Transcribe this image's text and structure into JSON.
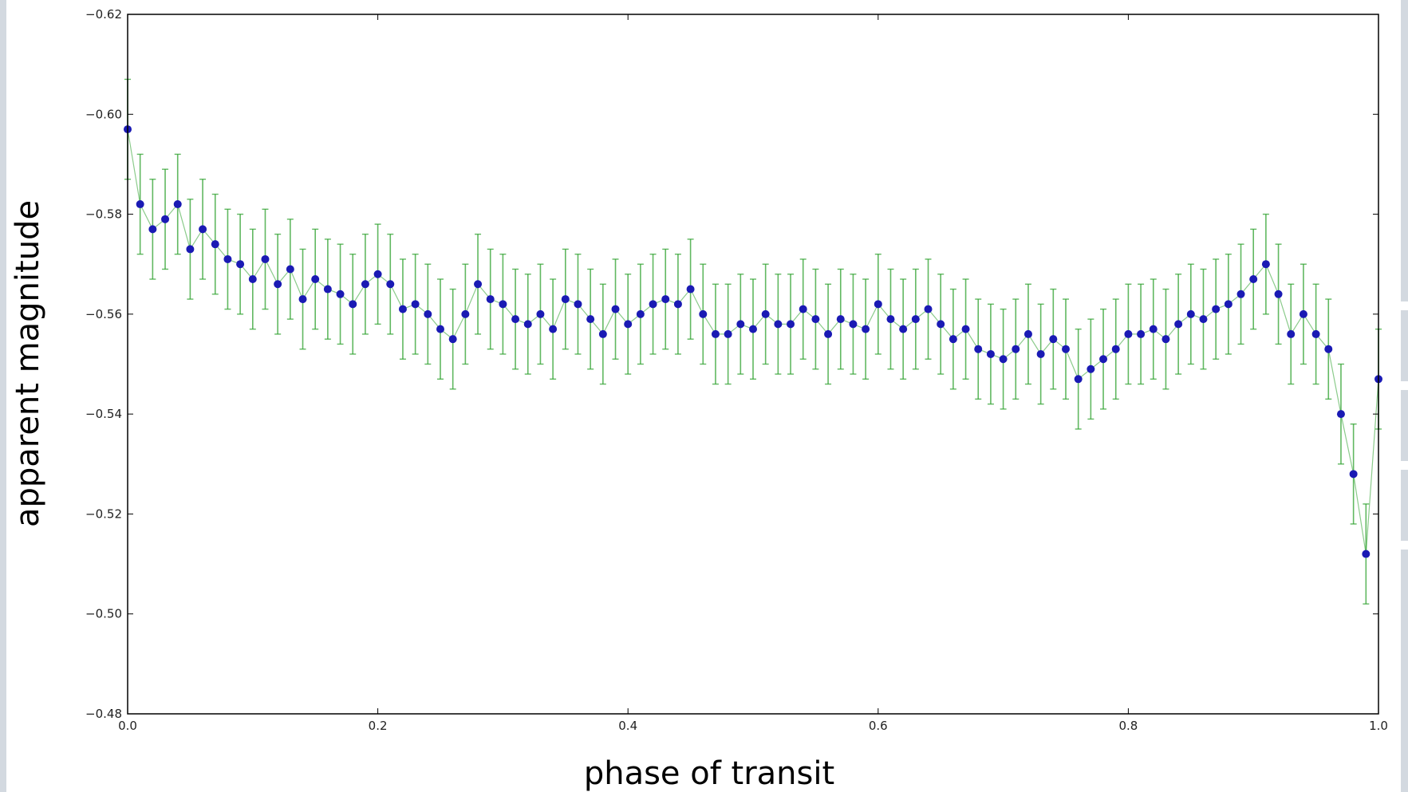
{
  "chart_data": {
    "type": "scatter",
    "title": "",
    "xlabel": "phase of transit",
    "ylabel": "apparent magnitude",
    "xlim": [
      0.0,
      1.0
    ],
    "ylim": [
      -0.62,
      -0.48
    ],
    "y_inverted": true,
    "grid": false,
    "x_ticks": [
      "0.0",
      "0.2",
      "0.4",
      "0.6",
      "0.8",
      "1.0"
    ],
    "y_ticks": [
      "−0.62",
      "−0.60",
      "−0.58",
      "−0.56",
      "−0.54",
      "−0.52",
      "−0.50",
      "−0.48"
    ],
    "marker_color": "#1a1ab4",
    "errorbar_color": "#2ca02c",
    "error": 0.01,
    "series": [
      {
        "x": [
          0.0,
          0.01,
          0.02,
          0.03,
          0.04,
          0.05,
          0.06,
          0.07,
          0.08,
          0.09,
          0.1,
          0.11,
          0.12,
          0.13,
          0.14,
          0.15,
          0.16,
          0.17,
          0.18,
          0.19,
          0.2,
          0.21,
          0.22,
          0.23,
          0.24,
          0.25,
          0.26,
          0.27,
          0.28,
          0.29,
          0.3,
          0.31,
          0.32,
          0.33,
          0.34,
          0.35,
          0.36,
          0.37,
          0.38,
          0.39,
          0.4,
          0.41,
          0.42,
          0.43,
          0.44,
          0.45,
          0.46,
          0.47,
          0.48,
          0.49,
          0.5,
          0.51,
          0.52,
          0.53,
          0.54,
          0.55,
          0.56,
          0.57,
          0.58,
          0.59,
          0.6,
          0.61,
          0.62,
          0.63,
          0.64,
          0.65,
          0.66,
          0.67,
          0.68,
          0.69,
          0.7,
          0.71,
          0.72,
          0.73,
          0.74,
          0.75,
          0.76,
          0.77,
          0.78,
          0.79,
          0.8,
          0.81,
          0.82,
          0.83,
          0.84,
          0.85,
          0.86,
          0.87,
          0.88,
          0.89,
          0.9,
          0.91,
          0.92,
          0.93,
          0.94,
          0.95,
          0.96,
          0.97,
          0.98,
          0.99,
          1.0
        ],
        "y": [
          -0.597,
          -0.582,
          -0.577,
          -0.579,
          -0.582,
          -0.573,
          -0.577,
          -0.574,
          -0.571,
          -0.57,
          -0.567,
          -0.571,
          -0.566,
          -0.569,
          -0.563,
          -0.567,
          -0.565,
          -0.564,
          -0.562,
          -0.566,
          -0.568,
          -0.566,
          -0.561,
          -0.562,
          -0.56,
          -0.557,
          -0.555,
          -0.56,
          -0.566,
          -0.563,
          -0.562,
          -0.559,
          -0.558,
          -0.56,
          -0.557,
          -0.563,
          -0.562,
          -0.559,
          -0.556,
          -0.561,
          -0.558,
          -0.56,
          -0.562,
          -0.563,
          -0.562,
          -0.565,
          -0.56,
          -0.556,
          -0.556,
          -0.558,
          -0.557,
          -0.56,
          -0.558,
          -0.558,
          -0.561,
          -0.559,
          -0.556,
          -0.559,
          -0.558,
          -0.557,
          -0.562,
          -0.559,
          -0.557,
          -0.559,
          -0.561,
          -0.558,
          -0.555,
          -0.557,
          -0.553,
          -0.552,
          -0.551,
          -0.553,
          -0.556,
          -0.552,
          -0.555,
          -0.553,
          -0.547,
          -0.549,
          -0.551,
          -0.553,
          -0.556,
          -0.556,
          -0.557,
          -0.555,
          -0.558,
          -0.56,
          -0.559,
          -0.561,
          -0.562,
          -0.564,
          -0.567,
          -0.57,
          -0.564,
          -0.556,
          -0.56,
          -0.556,
          -0.553,
          -0.54,
          -0.528,
          -0.512,
          -0.547
        ]
      }
    ]
  }
}
